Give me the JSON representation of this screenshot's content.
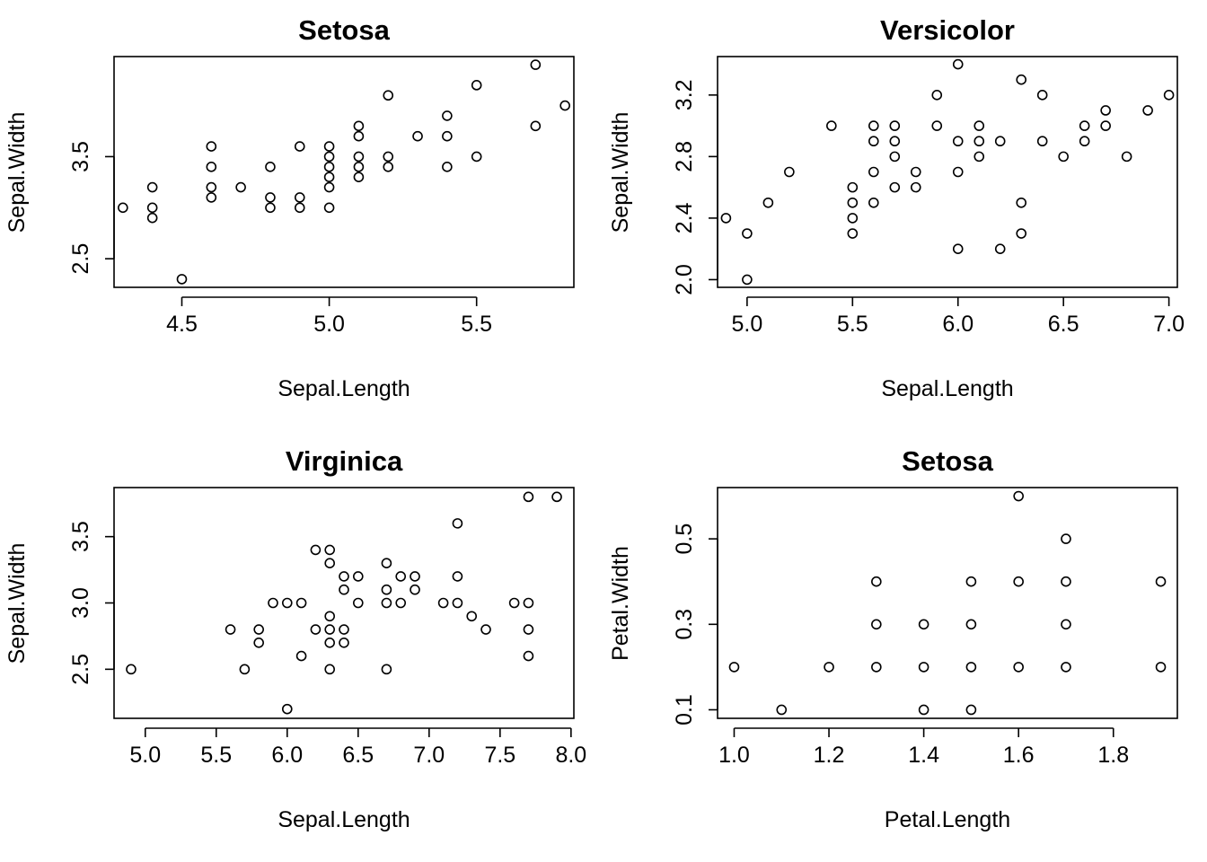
{
  "chart_data": [
    {
      "type": "scatter",
      "title": "Setosa",
      "xlabel": "Sepal.Length",
      "ylabel": "Sepal.Width",
      "xlim": [
        4.27,
        5.83
      ],
      "ylim": [
        2.22,
        4.48
      ],
      "xticks": [
        "4.5",
        "5.0",
        "5.5"
      ],
      "yticks": [
        "2.5",
        "3.5"
      ],
      "grid": false,
      "points": [
        [
          4.3,
          3.0
        ],
        [
          4.4,
          2.9
        ],
        [
          4.4,
          3.0
        ],
        [
          4.4,
          3.2
        ],
        [
          4.5,
          2.3
        ],
        [
          4.6,
          3.1
        ],
        [
          4.6,
          3.2
        ],
        [
          4.6,
          3.4
        ],
        [
          4.6,
          3.6
        ],
        [
          4.7,
          3.2
        ],
        [
          4.8,
          3.0
        ],
        [
          4.8,
          3.1
        ],
        [
          4.8,
          3.4
        ],
        [
          4.9,
          3.0
        ],
        [
          4.9,
          3.1
        ],
        [
          4.9,
          3.6
        ],
        [
          5.0,
          3.0
        ],
        [
          5.0,
          3.2
        ],
        [
          5.0,
          3.3
        ],
        [
          5.0,
          3.4
        ],
        [
          5.0,
          3.5
        ],
        [
          5.0,
          3.6
        ],
        [
          5.1,
          3.3
        ],
        [
          5.1,
          3.4
        ],
        [
          5.1,
          3.5
        ],
        [
          5.1,
          3.7
        ],
        [
          5.1,
          3.8
        ],
        [
          5.2,
          3.4
        ],
        [
          5.2,
          3.5
        ],
        [
          5.2,
          4.1
        ],
        [
          5.3,
          3.7
        ],
        [
          5.4,
          3.4
        ],
        [
          5.4,
          3.7
        ],
        [
          5.4,
          3.9
        ],
        [
          5.5,
          3.5
        ],
        [
          5.5,
          4.2
        ],
        [
          5.7,
          3.8
        ],
        [
          5.7,
          4.4
        ],
        [
          5.8,
          4.0
        ]
      ]
    },
    {
      "type": "scatter",
      "title": "Versicolor",
      "xlabel": "Sepal.Length",
      "ylabel": "Sepal.Width",
      "xlim": [
        4.86,
        7.04
      ],
      "ylim": [
        1.95,
        3.45
      ],
      "xticks": [
        "5.0",
        "5.5",
        "6.0",
        "6.5",
        "7.0"
      ],
      "yticks": [
        "2.0",
        "2.4",
        "2.8",
        "3.2"
      ],
      "grid": false,
      "points": [
        [
          4.9,
          2.4
        ],
        [
          5.0,
          2.0
        ],
        [
          5.0,
          2.3
        ],
        [
          5.1,
          2.5
        ],
        [
          5.2,
          2.7
        ],
        [
          5.4,
          3.0
        ],
        [
          5.5,
          2.3
        ],
        [
          5.5,
          2.4
        ],
        [
          5.5,
          2.5
        ],
        [
          5.5,
          2.6
        ],
        [
          5.6,
          2.5
        ],
        [
          5.6,
          2.7
        ],
        [
          5.6,
          2.9
        ],
        [
          5.6,
          3.0
        ],
        [
          5.7,
          2.6
        ],
        [
          5.7,
          2.8
        ],
        [
          5.7,
          2.9
        ],
        [
          5.7,
          3.0
        ],
        [
          5.8,
          2.6
        ],
        [
          5.8,
          2.7
        ],
        [
          5.9,
          3.0
        ],
        [
          5.9,
          3.2
        ],
        [
          6.0,
          2.2
        ],
        [
          6.0,
          2.7
        ],
        [
          6.0,
          2.9
        ],
        [
          6.0,
          3.4
        ],
        [
          6.1,
          2.8
        ],
        [
          6.1,
          2.9
        ],
        [
          6.1,
          3.0
        ],
        [
          6.2,
          2.2
        ],
        [
          6.2,
          2.9
        ],
        [
          6.3,
          2.3
        ],
        [
          6.3,
          2.5
        ],
        [
          6.3,
          3.3
        ],
        [
          6.4,
          2.9
        ],
        [
          6.4,
          3.2
        ],
        [
          6.5,
          2.8
        ],
        [
          6.6,
          2.9
        ],
        [
          6.6,
          3.0
        ],
        [
          6.7,
          3.0
        ],
        [
          6.7,
          3.1
        ],
        [
          6.8,
          2.8
        ],
        [
          6.9,
          3.1
        ],
        [
          7.0,
          3.2
        ]
      ]
    },
    {
      "type": "scatter",
      "title": "Virginica",
      "xlabel": "Sepal.Length",
      "ylabel": "Sepal.Width",
      "xlim": [
        4.78,
        8.02
      ],
      "ylim": [
        2.13,
        3.87
      ],
      "xticks": [
        "5.0",
        "5.5",
        "6.0",
        "6.5",
        "7.0",
        "7.5",
        "8.0"
      ],
      "yticks": [
        "2.5",
        "3.0",
        "3.5"
      ],
      "grid": false,
      "points": [
        [
          4.9,
          2.5
        ],
        [
          5.6,
          2.8
        ],
        [
          5.7,
          2.5
        ],
        [
          5.8,
          2.7
        ],
        [
          5.8,
          2.8
        ],
        [
          5.9,
          3.0
        ],
        [
          6.0,
          2.2
        ],
        [
          6.0,
          3.0
        ],
        [
          6.1,
          2.6
        ],
        [
          6.1,
          3.0
        ],
        [
          6.2,
          2.8
        ],
        [
          6.2,
          3.4
        ],
        [
          6.3,
          2.5
        ],
        [
          6.3,
          2.7
        ],
        [
          6.3,
          2.8
        ],
        [
          6.3,
          2.9
        ],
        [
          6.3,
          3.3
        ],
        [
          6.3,
          3.4
        ],
        [
          6.4,
          2.7
        ],
        [
          6.4,
          2.8
        ],
        [
          6.4,
          3.1
        ],
        [
          6.4,
          3.2
        ],
        [
          6.5,
          3.0
        ],
        [
          6.5,
          3.2
        ],
        [
          6.7,
          2.5
        ],
        [
          6.7,
          3.0
        ],
        [
          6.7,
          3.1
        ],
        [
          6.7,
          3.3
        ],
        [
          6.8,
          3.0
        ],
        [
          6.8,
          3.2
        ],
        [
          6.9,
          3.1
        ],
        [
          6.9,
          3.2
        ],
        [
          7.1,
          3.0
        ],
        [
          7.2,
          3.0
        ],
        [
          7.2,
          3.2
        ],
        [
          7.2,
          3.6
        ],
        [
          7.3,
          2.9
        ],
        [
          7.4,
          2.8
        ],
        [
          7.6,
          3.0
        ],
        [
          7.7,
          2.6
        ],
        [
          7.7,
          2.8
        ],
        [
          7.7,
          3.0
        ],
        [
          7.7,
          3.8
        ],
        [
          7.9,
          3.8
        ]
      ]
    },
    {
      "type": "scatter",
      "title": "Setosa",
      "xlabel": "Petal.Length",
      "ylabel": "Petal.Width",
      "xlim": [
        0.965,
        1.935
      ],
      "ylim": [
        0.08,
        0.62
      ],
      "xticks": [
        "1.0",
        "1.2",
        "1.4",
        "1.6",
        "1.8"
      ],
      "yticks": [
        "0.1",
        "0.3",
        "0.5"
      ],
      "grid": false,
      "points": [
        [
          1.0,
          0.2
        ],
        [
          1.1,
          0.1
        ],
        [
          1.2,
          0.2
        ],
        [
          1.3,
          0.2
        ],
        [
          1.3,
          0.3
        ],
        [
          1.3,
          0.4
        ],
        [
          1.4,
          0.1
        ],
        [
          1.4,
          0.2
        ],
        [
          1.4,
          0.3
        ],
        [
          1.5,
          0.1
        ],
        [
          1.5,
          0.2
        ],
        [
          1.5,
          0.3
        ],
        [
          1.5,
          0.4
        ],
        [
          1.6,
          0.2
        ],
        [
          1.6,
          0.4
        ],
        [
          1.6,
          0.6
        ],
        [
          1.7,
          0.2
        ],
        [
          1.7,
          0.3
        ],
        [
          1.7,
          0.4
        ],
        [
          1.7,
          0.5
        ],
        [
          1.9,
          0.2
        ],
        [
          1.9,
          0.4
        ]
      ]
    }
  ]
}
